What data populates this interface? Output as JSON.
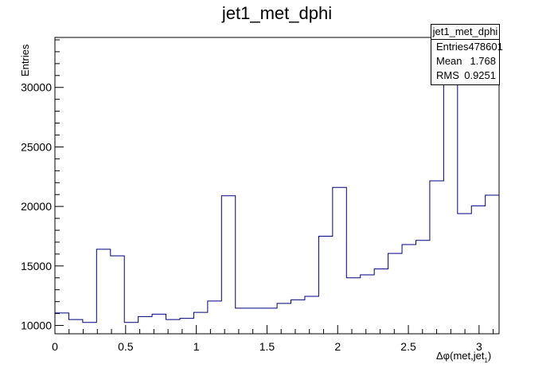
{
  "chart_data": {
    "type": "histogram",
    "title": "jet1_met_dphi",
    "xlabel_main": "Δφ(met,jet",
    "xlabel_sub": "1",
    "xlabel_close": ")",
    "ylabel": "Entries",
    "xlim": [
      0,
      3.1416
    ],
    "ylim": [
      9300,
      34200
    ],
    "x_ticks": [
      0,
      0.5,
      1,
      1.5,
      2,
      2.5,
      3
    ],
    "x_tick_labels": [
      "0",
      "0.5",
      "1",
      "1.5",
      "2",
      "2.5",
      "3"
    ],
    "y_ticks": [
      10000,
      15000,
      20000,
      25000,
      30000
    ],
    "y_tick_labels": [
      "10000",
      "15000",
      "20000",
      "25000",
      "30000"
    ],
    "bin_width": 0.0982,
    "values": [
      11050,
      10500,
      10250,
      16400,
      15850,
      10250,
      10750,
      10950,
      10500,
      10600,
      11100,
      12050,
      20900,
      11450,
      11450,
      11450,
      11850,
      12150,
      12450,
      17500,
      21600,
      14000,
      14250,
      14750,
      16050,
      16800,
      17150,
      22150,
      34200,
      19400,
      20050,
      20950
    ],
    "line_color": "#00007f",
    "grid": false
  },
  "stats_box": {
    "title": "jet1_met_dphi",
    "rows": [
      {
        "label": "Entries",
        "value": "478601"
      },
      {
        "label": "Mean",
        "value": "1.768"
      },
      {
        "label": "RMS",
        "value": "0.9251"
      }
    ]
  }
}
